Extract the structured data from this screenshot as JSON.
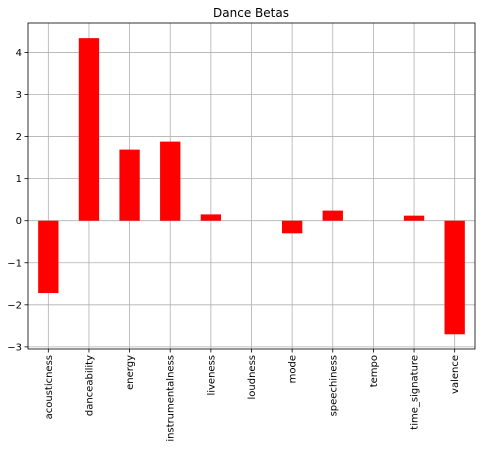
{
  "chart_data": {
    "type": "bar",
    "title": "Dance Betas",
    "xlabel": "",
    "ylabel": "",
    "categories": [
      "acousticness",
      "danceability",
      "energy",
      "instrumentalness",
      "liveness",
      "loudness",
      "mode",
      "speechiness",
      "tempo",
      "time_signature",
      "valence"
    ],
    "values": [
      -1.72,
      4.34,
      1.69,
      1.88,
      0.15,
      0.0,
      -0.3,
      0.24,
      0.0,
      0.12,
      -2.7
    ],
    "ylim": [
      -3.05,
      4.7
    ],
    "yticks": [
      -3,
      -2,
      -1,
      0,
      1,
      2,
      3,
      4
    ],
    "grid": true,
    "legend": "none",
    "bar_color": "#ff0000"
  }
}
